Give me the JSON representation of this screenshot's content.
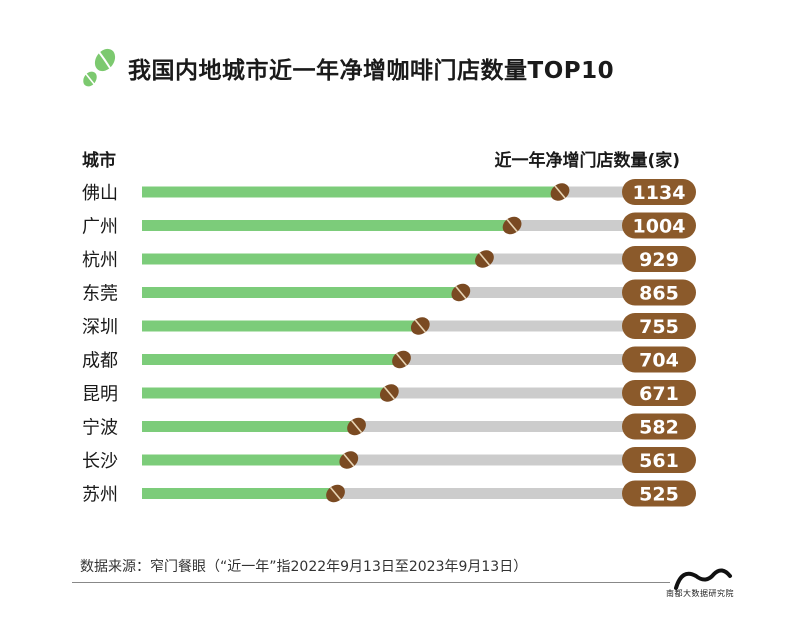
{
  "header": {
    "title": "我国内地城市近一年净增咖啡门店数量TOP10",
    "col_left": "城市",
    "col_right": "近一年净增门店数量(家)"
  },
  "footer": {
    "source": "数据来源：窄门餐眼（“近一年”指2022年9月13日至2023年9月13日）",
    "brand": "南都大数据研究院"
  },
  "colors": {
    "bar_fill": "#7ccc7a",
    "bar_track": "#cccccc",
    "badge": "#8b5a2b",
    "bean": "#7a4a22",
    "logo_green": "#7cc96f"
  },
  "chart_data": {
    "type": "bar",
    "orientation": "horizontal",
    "title": "我国内地城市近一年净增咖啡门店数量TOP10",
    "xlabel": "近一年净增门店数量(家)",
    "ylabel": "城市",
    "categories": [
      "佛山",
      "广州",
      "杭州",
      "东莞",
      "深圳",
      "成都",
      "昆明",
      "宁波",
      "长沙",
      "苏州"
    ],
    "values": [
      1134,
      1004,
      929,
      865,
      755,
      704,
      671,
      582,
      561,
      525
    ],
    "value_labels": [
      "1134",
      "1004",
      "929",
      "865",
      "755",
      "704",
      "671",
      "582",
      "561",
      "525"
    ]
  }
}
